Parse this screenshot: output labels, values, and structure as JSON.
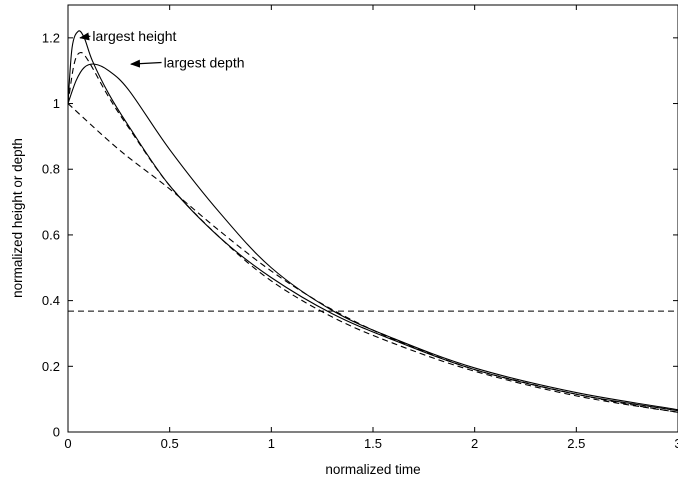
{
  "chart_data": {
    "type": "line",
    "title": "",
    "xlabel": "normalized time",
    "ylabel": "normalized height or depth",
    "xlim": [
      0,
      3
    ],
    "ylim": [
      0,
      1.3
    ],
    "grid": false,
    "xticks": [
      {
        "v": 0,
        "label": "0"
      },
      {
        "v": 0.5,
        "label": "0.5"
      },
      {
        "v": 1,
        "label": "1"
      },
      {
        "v": 1.5,
        "label": "1.5"
      },
      {
        "v": 2,
        "label": "2"
      },
      {
        "v": 2.5,
        "label": "2.5"
      },
      {
        "v": 3,
        "label": "3"
      }
    ],
    "yticks": [
      {
        "v": 0,
        "label": "0"
      },
      {
        "v": 0.2,
        "label": "0.2"
      },
      {
        "v": 0.4,
        "label": "0.4"
      },
      {
        "v": 0.6,
        "label": "0.6"
      },
      {
        "v": 0.8,
        "label": "0.8"
      },
      {
        "v": 1,
        "label": "1"
      },
      {
        "v": 1.2,
        "label": "1.2"
      }
    ],
    "series": [
      {
        "style": "solid",
        "color": "#000000",
        "x": [
          0,
          0.02,
          0.05,
          0.08,
          0.12,
          0.2,
          0.3,
          0.5,
          0.75,
          1.0,
          1.3,
          1.6,
          2.0,
          2.5,
          3.0
        ],
        "y": [
          1.0,
          1.17,
          1.22,
          1.2,
          1.13,
          1.03,
          0.93,
          0.75,
          0.59,
          0.47,
          0.36,
          0.28,
          0.19,
          0.115,
          0.065
        ]
      },
      {
        "style": "dashed",
        "color": "#000000",
        "x": [
          0,
          0.03,
          0.06,
          0.1,
          0.2,
          0.3,
          0.5,
          0.75,
          1.0,
          1.3,
          1.6,
          2.0,
          2.5,
          3.0
        ],
        "y": [
          1.0,
          1.12,
          1.155,
          1.13,
          1.02,
          0.925,
          0.75,
          0.59,
          0.46,
          0.35,
          0.27,
          0.185,
          0.11,
          0.06
        ]
      },
      {
        "style": "solid",
        "color": "#000000",
        "x": [
          0,
          0.04,
          0.08,
          0.13,
          0.2,
          0.3,
          0.5,
          0.75,
          1.0,
          1.3,
          1.6,
          2.0,
          2.5,
          3.0
        ],
        "y": [
          1.0,
          1.07,
          1.11,
          1.12,
          1.1,
          1.04,
          0.86,
          0.665,
          0.5,
          0.37,
          0.285,
          0.195,
          0.12,
          0.068
        ]
      },
      {
        "style": "dashed",
        "color": "#000000",
        "x": [
          0,
          0.25,
          0.5,
          0.75,
          1.0,
          1.25,
          1.5,
          1.75,
          2.0,
          2.25,
          2.5,
          2.75,
          3.0
        ],
        "y": [
          1.0,
          0.86,
          0.74,
          0.61,
          0.49,
          0.39,
          0.31,
          0.245,
          0.19,
          0.15,
          0.115,
          0.085,
          0.06
        ]
      },
      {
        "style": "dashed",
        "color": "#000000",
        "x": [
          0,
          3
        ],
        "y": [
          0.368,
          0.368
        ]
      }
    ],
    "annotations": [
      {
        "text": "largest height",
        "point": [
          0.05,
          1.2
        ],
        "text_at": [
          0.12,
          1.205
        ]
      },
      {
        "text": "largest depth",
        "point": [
          0.3,
          1.12
        ],
        "text_at": [
          0.47,
          1.125
        ]
      }
    ]
  }
}
